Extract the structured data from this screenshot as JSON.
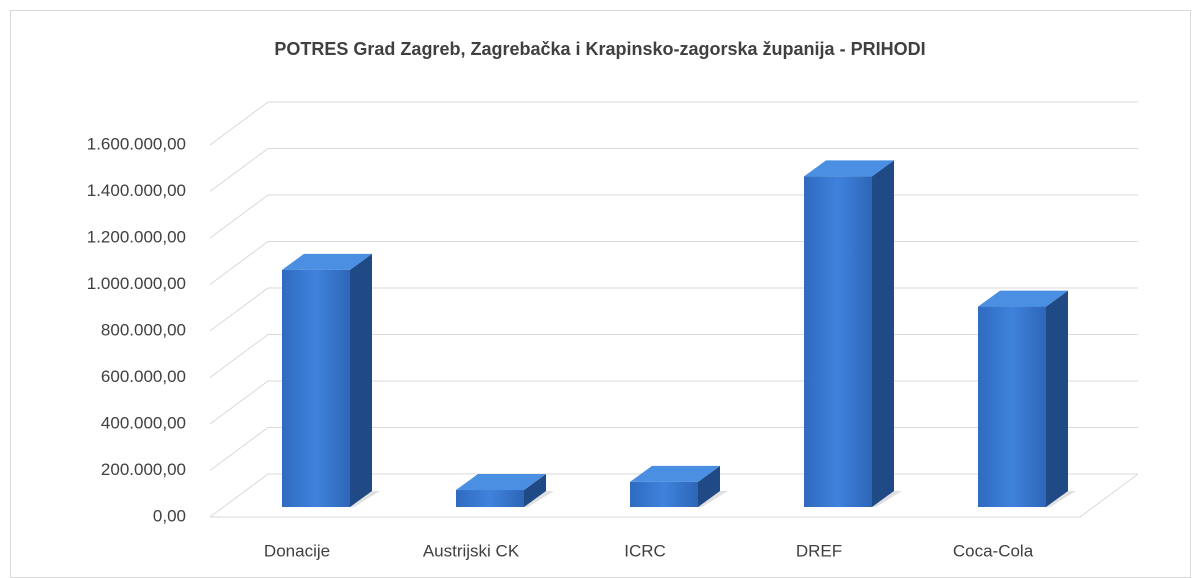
{
  "chart_data": {
    "type": "bar3d",
    "title": "POTRES Grad Zagreb, Zagrebačka i Krapinsko-zagorska županija - PRIHODI",
    "categories": [
      "Donacije",
      "Austrijski CK",
      "ICRC",
      "DREF",
      "Coca-Cola"
    ],
    "values": [
      1020000,
      73000,
      108000,
      1422000,
      862000
    ],
    "color": "#3a78cf",
    "ylim": [
      0,
      1600000
    ],
    "yticks": [
      {
        "value": 0,
        "label": "0,00"
      },
      {
        "value": 200000,
        "label": "200.000,00"
      },
      {
        "value": 400000,
        "label": "400.000,00"
      },
      {
        "value": 600000,
        "label": "600.000,00"
      },
      {
        "value": 800000,
        "label": "800.000,00"
      },
      {
        "value": 1000000,
        "label": "1.000.000,00"
      },
      {
        "value": 1200000,
        "label": "1.200.000,00"
      },
      {
        "value": 1400000,
        "label": "1.400.000,00"
      },
      {
        "value": 1600000,
        "label": "1.600.000,00"
      }
    ],
    "grid": true
  }
}
